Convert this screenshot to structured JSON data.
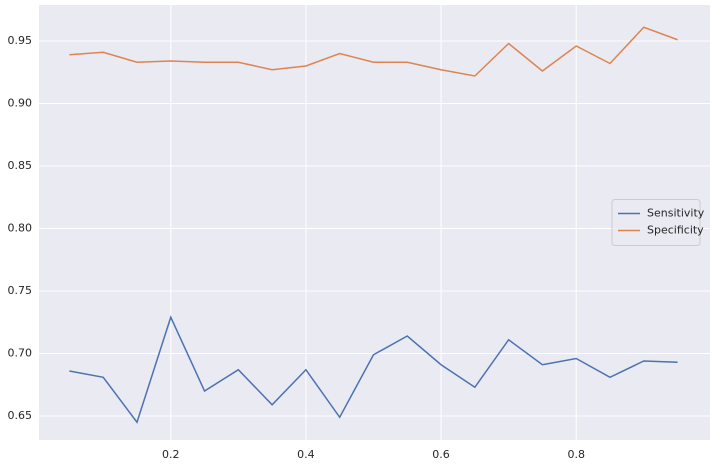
{
  "chart_data": {
    "type": "line",
    "x": [
      0.05,
      0.1,
      0.15,
      0.2,
      0.25,
      0.3,
      0.35,
      0.4,
      0.45,
      0.5,
      0.55,
      0.6,
      0.65,
      0.7,
      0.75,
      0.8,
      0.85,
      0.9,
      0.95
    ],
    "series": [
      {
        "name": "Sensitivity",
        "color": "#4c72b0",
        "values": [
          0.686,
          0.681,
          0.645,
          0.729,
          0.67,
          0.687,
          0.659,
          0.687,
          0.649,
          0.699,
          0.714,
          0.691,
          0.673,
          0.711,
          0.691,
          0.696,
          0.681,
          0.694,
          0.693
        ]
      },
      {
        "name": "Specificity",
        "color": "#dd8452",
        "values": [
          0.939,
          0.941,
          0.933,
          0.934,
          0.933,
          0.933,
          0.927,
          0.93,
          0.94,
          0.933,
          0.933,
          0.927,
          0.922,
          0.948,
          0.926,
          0.946,
          0.932,
          0.961,
          0.951
        ]
      }
    ],
    "xlim": [
      0.005,
      0.998
    ],
    "xticks": [
      0.2,
      0.4,
      0.6,
      0.8
    ],
    "ylim": [
      0.6308,
      0.9788
    ],
    "yticks": [
      0.65,
      {
        "value": 0.7,
        "label": "0.70"
      },
      0.75,
      {
        "value": 0.8,
        "label": "0.80"
      },
      0.85,
      {
        "value": 0.9,
        "label": "0.90"
      },
      0.95
    ],
    "grid": true,
    "legend": "center right"
  }
}
